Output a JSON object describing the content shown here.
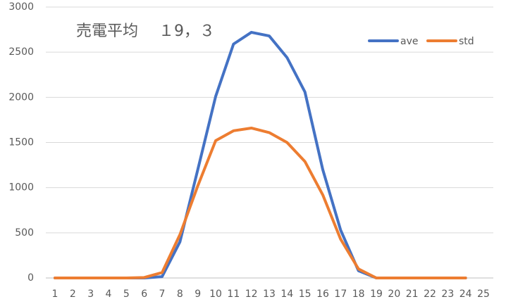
{
  "chart_data": {
    "type": "line",
    "title": "売電平均　 １9，３",
    "categories": [
      "1",
      "2",
      "3",
      "4",
      "5",
      "6",
      "7",
      "8",
      "9",
      "10",
      "11",
      "12",
      "13",
      "14",
      "15",
      "16",
      "17",
      "18",
      "19",
      "20",
      "21",
      "22",
      "23",
      "24",
      "25"
    ],
    "series": [
      {
        "name": "ave",
        "color": "#4472c4",
        "values": [
          0,
          0,
          0,
          0,
          0,
          0,
          15,
          400,
          1200,
          2010,
          2590,
          2720,
          2680,
          2440,
          2060,
          1200,
          530,
          80,
          0,
          0,
          0,
          0,
          0,
          0,
          null
        ]
      },
      {
        "name": "std",
        "color": "#ed7d31",
        "values": [
          0,
          0,
          0,
          0,
          0,
          5,
          60,
          480,
          1020,
          1520,
          1630,
          1660,
          1610,
          1500,
          1290,
          920,
          430,
          100,
          0,
          0,
          0,
          0,
          0,
          0,
          null
        ]
      }
    ],
    "ylim": [
      0,
      3000
    ],
    "yticks": [
      0,
      500,
      1000,
      1500,
      2000,
      2500,
      3000
    ],
    "grid": true,
    "legend": "top-right"
  }
}
